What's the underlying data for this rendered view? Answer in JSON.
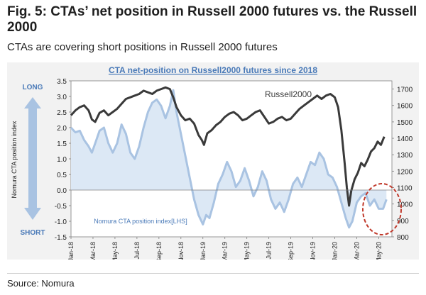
{
  "figure": {
    "title": "Fig. 5: CTAs’ net position in Russell 2000 futures vs. the Russell 2000",
    "subtitle": "CTAs are covering short positions in Russell 2000 futures",
    "source": "Source: Nomura"
  },
  "chart_data": {
    "type": "line",
    "title": "CTA net-position on Russell2000  futures since 2018",
    "side_labels": {
      "top": "LONG",
      "bottom": "SHORT",
      "axis_title": "Nomura CTA position index"
    },
    "x_tick_labels": [
      "Jan-18",
      "Mar-18",
      "May-18",
      "Jul-18",
      "Sep-18",
      "Nov-18",
      "Jan-19",
      "Mar-19",
      "May-19",
      "Jul-19",
      "Sep-19",
      "Nov-19",
      "Jan-20",
      "Mar-20",
      "May-20"
    ],
    "x_range": [
      0,
      29.2
    ],
    "y_left": {
      "min": -1.5,
      "max": 3.5,
      "ticks": [
        "3.5",
        "3.0",
        "2.5",
        "2.0",
        "1.5",
        "1.0",
        "0.5",
        "0.0",
        "-0.5",
        "-1.0",
        "-1.5"
      ]
    },
    "y_right": {
      "min": 800,
      "max": 1750,
      "ticks": [
        "1700",
        "1600",
        "1500",
        "1400",
        "1300",
        "1200",
        "1100",
        "1000",
        "900",
        "800"
      ]
    },
    "colors": {
      "russell": "#3a3a3a",
      "cta": "#a9c3e2",
      "cta_fill": "#dce8f5",
      "title": "#4a7ab8",
      "arrow": "#a9c3e2",
      "circle": "#c0392b"
    },
    "series": [
      {
        "name": "Russell2000",
        "axis": "right",
        "points": [
          [
            0,
            1540
          ],
          [
            0.4,
            1570
          ],
          [
            0.8,
            1590
          ],
          [
            1.2,
            1600
          ],
          [
            1.6,
            1570
          ],
          [
            1.9,
            1515
          ],
          [
            2.2,
            1500
          ],
          [
            2.6,
            1555
          ],
          [
            3,
            1570
          ],
          [
            3.4,
            1540
          ],
          [
            3.8,
            1560
          ],
          [
            4.2,
            1580
          ],
          [
            4.6,
            1610
          ],
          [
            5,
            1640
          ],
          [
            5.4,
            1650
          ],
          [
            5.8,
            1660
          ],
          [
            6.2,
            1670
          ],
          [
            6.6,
            1690
          ],
          [
            7,
            1680
          ],
          [
            7.4,
            1670
          ],
          [
            7.8,
            1690
          ],
          [
            8.2,
            1700
          ],
          [
            8.6,
            1710
          ],
          [
            9,
            1700
          ],
          [
            9.3,
            1650
          ],
          [
            9.6,
            1590
          ],
          [
            10,
            1540
          ],
          [
            10.4,
            1510
          ],
          [
            10.8,
            1520
          ],
          [
            11.2,
            1490
          ],
          [
            11.6,
            1420
          ],
          [
            11.9,
            1390
          ],
          [
            12.1,
            1360
          ],
          [
            12.4,
            1430
          ],
          [
            12.8,
            1450
          ],
          [
            13.2,
            1480
          ],
          [
            13.6,
            1500
          ],
          [
            14,
            1530
          ],
          [
            14.4,
            1550
          ],
          [
            14.8,
            1560
          ],
          [
            15.2,
            1540
          ],
          [
            15.6,
            1510
          ],
          [
            16,
            1520
          ],
          [
            16.4,
            1540
          ],
          [
            16.8,
            1560
          ],
          [
            17.2,
            1570
          ],
          [
            17.6,
            1530
          ],
          [
            18,
            1490
          ],
          [
            18.4,
            1500
          ],
          [
            18.8,
            1520
          ],
          [
            19.2,
            1530
          ],
          [
            19.6,
            1510
          ],
          [
            20,
            1520
          ],
          [
            20.4,
            1550
          ],
          [
            20.8,
            1580
          ],
          [
            21.2,
            1600
          ],
          [
            21.6,
            1620
          ],
          [
            22,
            1640
          ],
          [
            22.4,
            1660
          ],
          [
            22.8,
            1640
          ],
          [
            23.2,
            1660
          ],
          [
            23.6,
            1670
          ],
          [
            24,
            1650
          ],
          [
            24.3,
            1590
          ],
          [
            24.6,
            1450
          ],
          [
            24.9,
            1250
          ],
          [
            25.1,
            1100
          ],
          [
            25.3,
            990
          ],
          [
            25.5,
            1080
          ],
          [
            25.8,
            1150
          ],
          [
            26.1,
            1190
          ],
          [
            26.4,
            1250
          ],
          [
            26.7,
            1230
          ],
          [
            27,
            1270
          ],
          [
            27.3,
            1320
          ],
          [
            27.6,
            1340
          ],
          [
            27.9,
            1380
          ],
          [
            28.2,
            1360
          ],
          [
            28.5,
            1410
          ]
        ]
      },
      {
        "name": "Nomura CTA position index[LHS]",
        "axis": "left",
        "points": [
          [
            0,
            2.0
          ],
          [
            0.4,
            1.85
          ],
          [
            0.8,
            1.9
          ],
          [
            1.2,
            1.6
          ],
          [
            1.6,
            1.4
          ],
          [
            1.9,
            1.2
          ],
          [
            2.2,
            1.5
          ],
          [
            2.6,
            1.9
          ],
          [
            3,
            2.0
          ],
          [
            3.4,
            1.5
          ],
          [
            3.8,
            1.2
          ],
          [
            4.2,
            1.5
          ],
          [
            4.6,
            2.1
          ],
          [
            5,
            1.8
          ],
          [
            5.4,
            1.2
          ],
          [
            5.8,
            1.0
          ],
          [
            6.2,
            1.4
          ],
          [
            6.6,
            2.0
          ],
          [
            7,
            2.5
          ],
          [
            7.4,
            2.8
          ],
          [
            7.8,
            2.9
          ],
          [
            8.2,
            2.7
          ],
          [
            8.6,
            2.3
          ],
          [
            9,
            2.7
          ],
          [
            9.3,
            3.2
          ],
          [
            9.6,
            2.5
          ],
          [
            10,
            1.8
          ],
          [
            10.4,
            1.1
          ],
          [
            10.8,
            0.4
          ],
          [
            11.2,
            -0.3
          ],
          [
            11.6,
            -0.8
          ],
          [
            12,
            -1.1
          ],
          [
            12.3,
            -0.8
          ],
          [
            12.6,
            -0.9
          ],
          [
            13,
            -0.4
          ],
          [
            13.4,
            0.2
          ],
          [
            13.8,
            0.5
          ],
          [
            14.2,
            0.9
          ],
          [
            14.6,
            0.6
          ],
          [
            15,
            0.1
          ],
          [
            15.4,
            0.3
          ],
          [
            15.8,
            0.7
          ],
          [
            16.2,
            0.3
          ],
          [
            16.6,
            -0.2
          ],
          [
            17,
            0.1
          ],
          [
            17.4,
            0.6
          ],
          [
            17.8,
            0.3
          ],
          [
            18.2,
            -0.3
          ],
          [
            18.6,
            -0.6
          ],
          [
            19,
            -0.4
          ],
          [
            19.4,
            -0.7
          ],
          [
            19.8,
            -0.3
          ],
          [
            20.2,
            0.2
          ],
          [
            20.6,
            0.4
          ],
          [
            21,
            0.1
          ],
          [
            21.4,
            0.5
          ],
          [
            21.8,
            0.9
          ],
          [
            22.2,
            0.8
          ],
          [
            22.6,
            1.2
          ],
          [
            23,
            1.0
          ],
          [
            23.4,
            0.5
          ],
          [
            23.8,
            0.4
          ],
          [
            24.2,
            0.1
          ],
          [
            24.6,
            -0.4
          ],
          [
            25,
            -0.9
          ],
          [
            25.3,
            -1.2
          ],
          [
            25.6,
            -1.0
          ],
          [
            26,
            -0.4
          ],
          [
            26.4,
            -0.2
          ],
          [
            26.8,
            -0.1
          ],
          [
            27.2,
            -0.5
          ],
          [
            27.6,
            -0.3
          ],
          [
            28,
            -0.6
          ],
          [
            28.4,
            -0.6
          ],
          [
            28.7,
            -0.3
          ]
        ]
      }
    ]
  }
}
